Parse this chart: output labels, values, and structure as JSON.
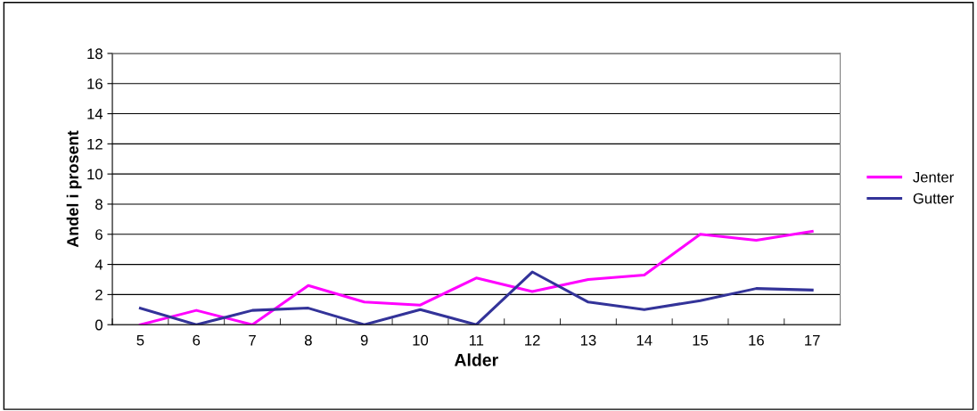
{
  "chart_data": {
    "type": "line",
    "xlabel": "Alder",
    "ylabel": "Andel i prosent",
    "categories": [
      "5",
      "6",
      "7",
      "8",
      "9",
      "10",
      "11",
      "12",
      "13",
      "14",
      "15",
      "16",
      "17"
    ],
    "series": [
      {
        "name": "Jenter",
        "color": "#ff00ff",
        "values": [
          0,
          0.95,
          0,
          2.6,
          1.5,
          1.3,
          3.1,
          2.2,
          3.0,
          3.3,
          6.0,
          5.6,
          6.2
        ]
      },
      {
        "name": "Gutter",
        "color": "#333399",
        "values": [
          1.1,
          0,
          0.95,
          1.1,
          0,
          1.0,
          0,
          3.5,
          1.5,
          1.0,
          1.6,
          2.4,
          2.3
        ]
      }
    ],
    "ylim": [
      0,
      18
    ],
    "yticks": [
      0,
      2,
      4,
      6,
      8,
      10,
      12,
      14,
      16,
      18
    ],
    "grid": "y",
    "legend": "right",
    "marker": "none",
    "line_style": "solid"
  }
}
